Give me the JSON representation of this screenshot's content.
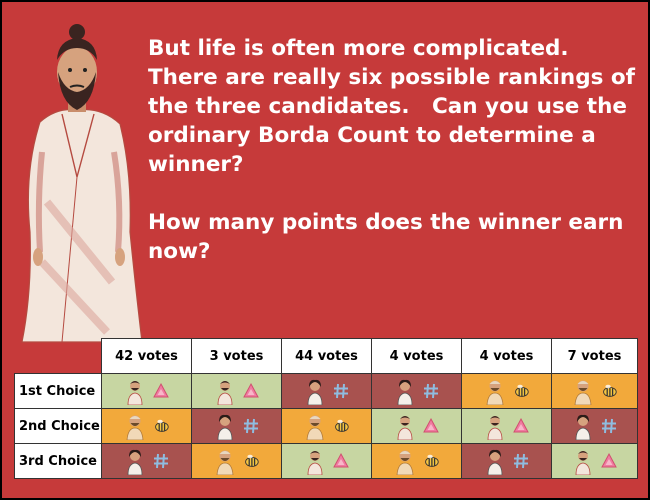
{
  "prompt": {
    "paragraph_1": "But life is often more complicated. There are really six possible rankings of the three candidates.   Can you use the ordinary Borda Count to determine a winner?",
    "paragraph_2": "How many points does the winner earn now?"
  },
  "table": {
    "columns": [
      "42 votes",
      "3 votes",
      "44 votes",
      "4 votes",
      "4 votes",
      "7 votes"
    ],
    "rows": [
      {
        "label": "1st Choice",
        "candidates": [
          "A",
          "A",
          "B",
          "B",
          "C",
          "C"
        ]
      },
      {
        "label": "2nd Choice",
        "candidates": [
          "C",
          "B",
          "C",
          "A",
          "A",
          "B"
        ]
      },
      {
        "label": "3rd Choice",
        "candidates": [
          "B",
          "C",
          "A",
          "C",
          "B",
          "A"
        ]
      }
    ]
  },
  "candidates": {
    "A": {
      "icon": "triangle-icon",
      "color": "#c7d6a2"
    },
    "B": {
      "icon": "hashtag-icon",
      "color": "#a8524f"
    },
    "C": {
      "icon": "bee-icon",
      "color": "#f2a93b"
    }
  },
  "colors": {
    "background": "#c63a3a",
    "text": "#ffffff"
  }
}
